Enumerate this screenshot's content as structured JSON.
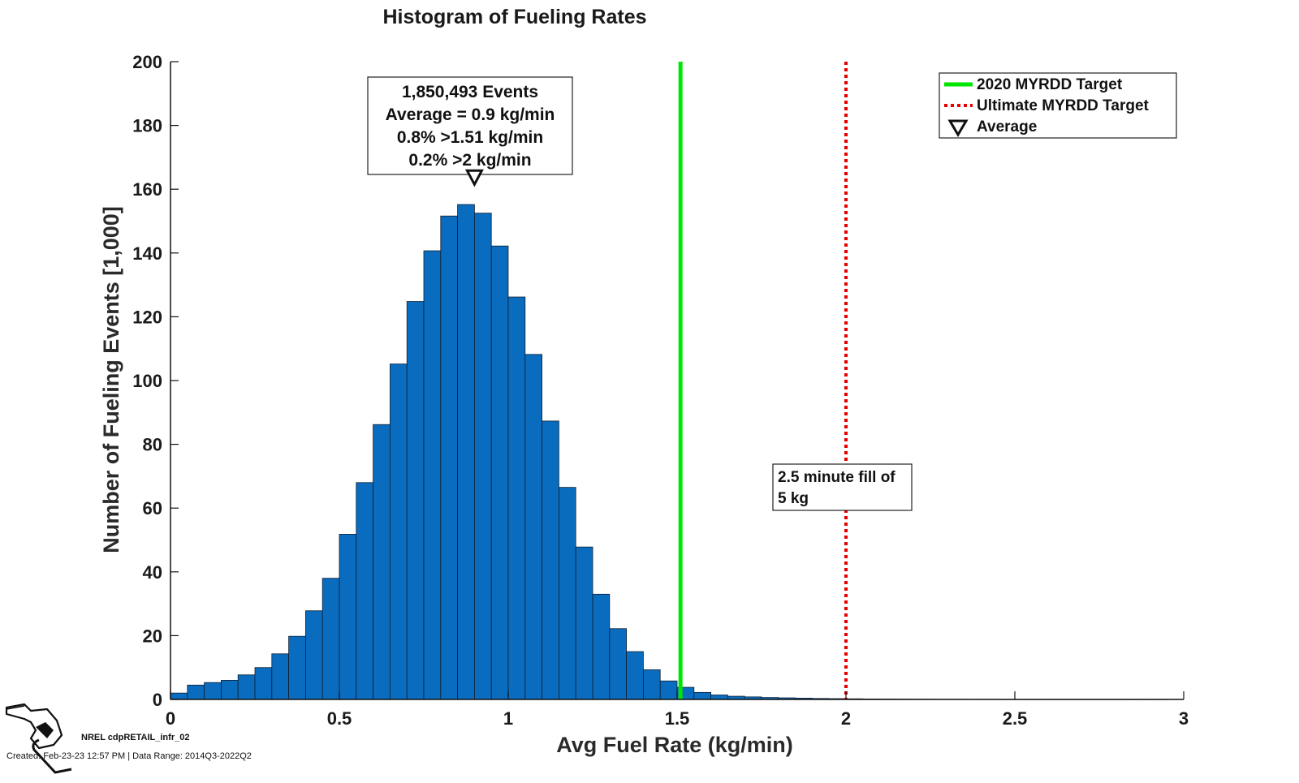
{
  "chart_data": {
    "type": "bar",
    "title": "Histogram of Fueling Rates",
    "xlabel": "Avg Fuel Rate (kg/min)",
    "ylabel": "Number of Fueling Events [1,000]",
    "xlim": [
      0,
      3
    ],
    "ylim": [
      0,
      200
    ],
    "xticks": [
      0,
      0.5,
      1,
      1.5,
      2,
      2.5,
      3
    ],
    "xtick_labels": [
      "0",
      "0.5",
      "1",
      "1.5",
      "2",
      "2.5",
      "3"
    ],
    "yticks": [
      0,
      20,
      40,
      60,
      80,
      100,
      120,
      140,
      160,
      180,
      200
    ],
    "ytick_labels": [
      "0",
      "20",
      "40",
      "60",
      "80",
      "100",
      "120",
      "140",
      "160",
      "180",
      "200"
    ],
    "bin_start": 0.025,
    "bin_width": 0.05,
    "values": [
      2,
      4.5,
      5.3,
      6,
      7.7,
      10,
      14.3,
      19.8,
      27.8,
      38,
      51.8,
      68,
      86.2,
      105.2,
      124.8,
      140.7,
      151.6,
      155.2,
      152.5,
      142.2,
      126.2,
      108.2,
      87.3,
      66.5,
      47.8,
      33,
      22.2,
      15,
      9.3,
      5.8,
      3.8,
      2.2,
      1.4,
      1.0,
      0.8,
      0.6,
      0.5,
      0.4,
      0.3,
      0.25,
      0.2,
      0.15,
      0.12,
      0.1,
      0.08,
      0.06,
      0.05,
      0.04,
      0.03,
      0.02,
      0.02,
      0.015,
      0.01,
      0.01,
      0.01,
      0.008,
      0.006,
      0.005,
      0.004
    ],
    "reference_lines": [
      {
        "name": "2020 MYRDD Target",
        "x": 1.51,
        "color": "#00e600",
        "style": "solid"
      },
      {
        "name": "Ultimate MYRDD Target",
        "x": 2.0,
        "color": "#e60000",
        "style": "dotted"
      }
    ],
    "average_marker": {
      "name": "Average",
      "x": 0.9,
      "y": 161.5
    },
    "legend_position": "top-right",
    "grid": false,
    "bar_color": "#0a6cbf",
    "annotation_main": [
      "1,850,493 Events",
      "Average = 0.9 kg/min",
      "0.8% >1.51 kg/min",
      "0.2% >2 kg/min"
    ],
    "annotation_target": [
      "2.5 minute fill of",
      "5 kg"
    ]
  },
  "footer": {
    "source": "NREL cdpRETAIL_infr_02",
    "created": "Created: Feb-23-23 12:57 PM | Data Range: 2014Q3-2022Q2"
  },
  "logo": {
    "icon": "fuel-nozzle-icon"
  }
}
